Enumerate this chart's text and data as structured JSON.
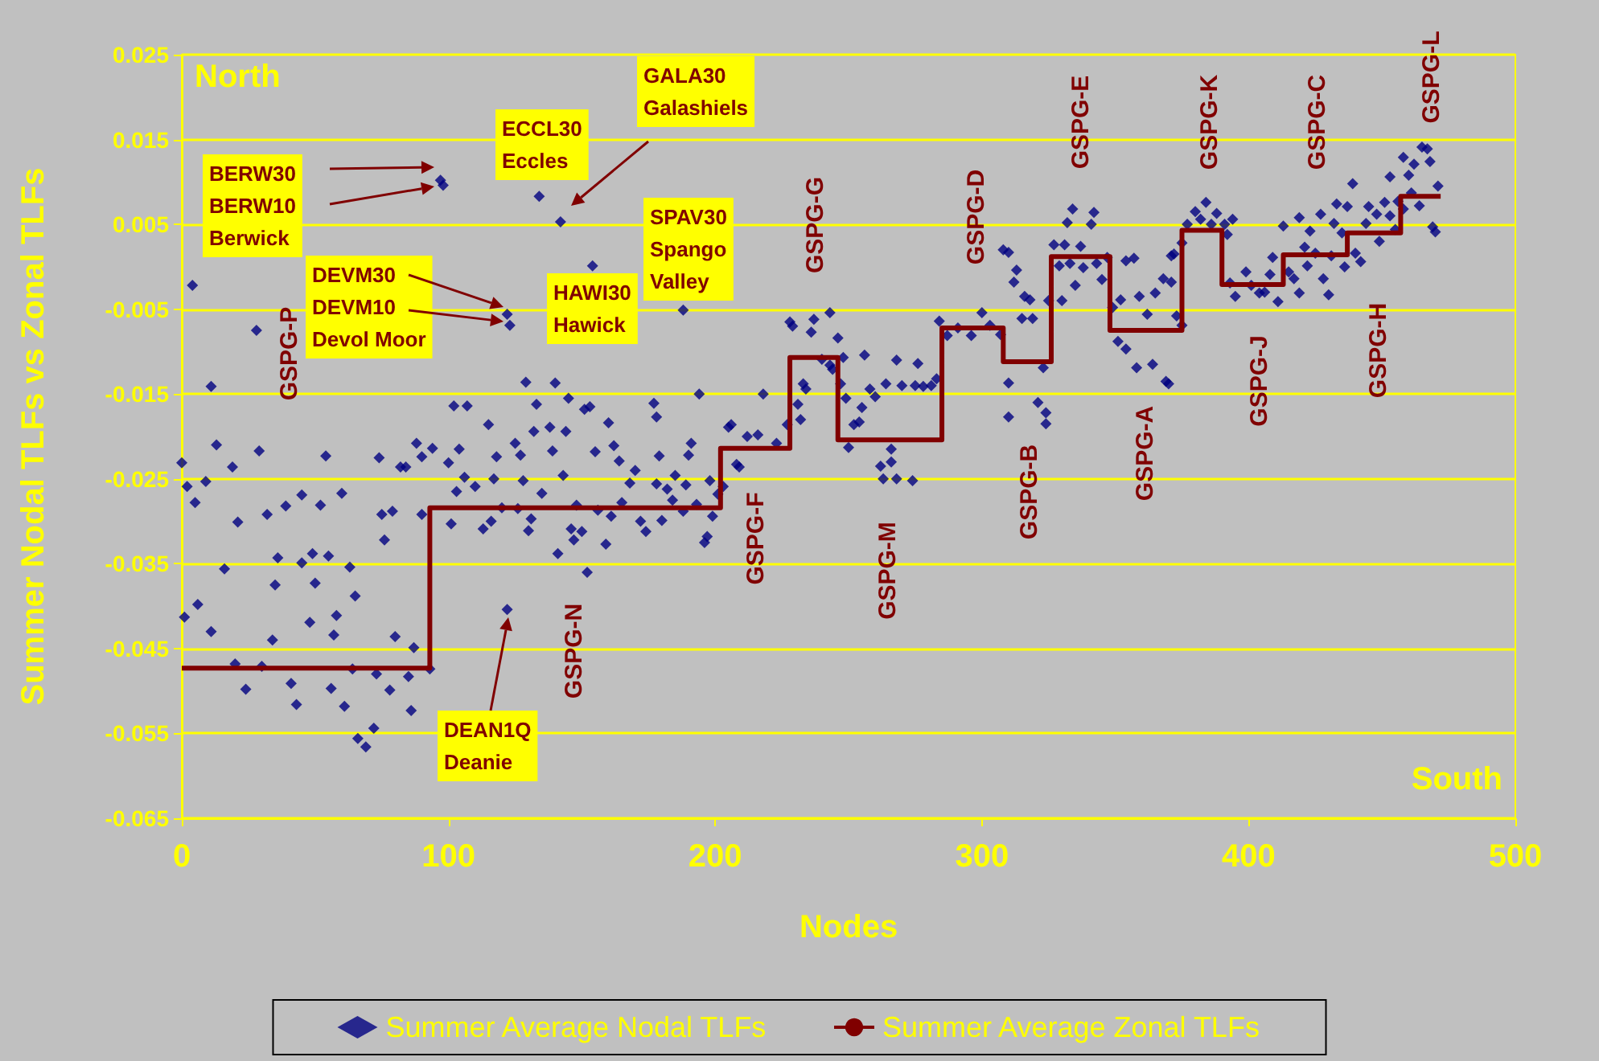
{
  "chart_data": {
    "type": "scatter",
    "xlabel": "Nodes",
    "ylabel": "Summer Nodal TLFs vs Zonal TLFs",
    "xlim": [
      0,
      500
    ],
    "xticks": [
      0,
      100,
      200,
      300,
      400,
      500
    ],
    "ylim": [
      -0.065,
      0.025
    ],
    "yticks": [
      -0.065,
      -0.055,
      -0.045,
      -0.035,
      -0.025,
      -0.015,
      -0.005,
      0.005,
      0.015,
      0.025
    ],
    "grid": "y",
    "legend": "bottom",
    "series": [
      {
        "name": "Summer Average Nodal TLFs",
        "marker": "diamond",
        "color": "#000080",
        "x": [
          4,
          28,
          11,
          0,
          13,
          2,
          9,
          5,
          19,
          29,
          21,
          16,
          1,
          6,
          11,
          20,
          24,
          32,
          36,
          35,
          45,
          39,
          45,
          49,
          50,
          34,
          30,
          41,
          43,
          48,
          54,
          52,
          55,
          57,
          56,
          60,
          63,
          65,
          58,
          61,
          64,
          66,
          69,
          72,
          73,
          75,
          76,
          74,
          79,
          82,
          84,
          80,
          78,
          86,
          85,
          87,
          88,
          90,
          94,
          90,
          93,
          97,
          98,
          102,
          107,
          115,
          104,
          100,
          106,
          103,
          101,
          110,
          113,
          116,
          118,
          120,
          117,
          122,
          122,
          123,
          134,
          142,
          154,
          188,
          129,
          140,
          145,
          151,
          153,
          133,
          132,
          138,
          144,
          127,
          125,
          139,
          155,
          160,
          162,
          164,
          177,
          178,
          194,
          191,
          190,
          179,
          128,
          135,
          143,
          126,
          131,
          130,
          141,
          148,
          146,
          150,
          147,
          152,
          159,
          161,
          156,
          168,
          170,
          165,
          172,
          174,
          178,
          182,
          180,
          185,
          184,
          188,
          189,
          193,
          196,
          197,
          198,
          199,
          201,
          203,
          205,
          206,
          208,
          209,
          212,
          216,
          218,
          223,
          227,
          228,
          229,
          232,
          231,
          233,
          234,
          237,
          236,
          243,
          240,
          244,
          246,
          243,
          248,
          247,
          249,
          252,
          250,
          254,
          255,
          256,
          258,
          260,
          264,
          262,
          263,
          266,
          266,
          268,
          274,
          268,
          270,
          276,
          275,
          278,
          281,
          283,
          284,
          287,
          291,
          296,
          300,
          303,
          307,
          308,
          310,
          313,
          312,
          316,
          318,
          315,
          319,
          310,
          310,
          321,
          324,
          324,
          323,
          325,
          330,
          327,
          331,
          332,
          334,
          329,
          333,
          335,
          338,
          337,
          341,
          342,
          343,
          345,
          347,
          349,
          351,
          354,
          358,
          364,
          352,
          359,
          362,
          354,
          357,
          365,
          368,
          370,
          371,
          371,
          369,
          372,
          373,
          375,
          375,
          377,
          380,
          384,
          382,
          386,
          388,
          391,
          394,
          392,
          395,
          393,
          399,
          401,
          404,
          406,
          409,
          411,
          408,
          413,
          415,
          417,
          419,
          419,
          421,
          422,
          423,
          425,
          427,
          428,
          430,
          431,
          433,
          432,
          435,
          436,
          437,
          439,
          440,
          442,
          444,
          445,
          448,
          449,
          451,
          453,
          453,
          455,
          456,
          458,
          458,
          460,
          462,
          464,
          465,
          467,
          468,
          471,
          469,
          470,
          461
        ],
        "values": [
          -0.0022,
          -0.0075,
          -0.0141,
          -0.0231,
          -0.021,
          -0.0259,
          -0.0253,
          -0.0278,
          -0.0236,
          -0.0217,
          -0.0301,
          -0.0356,
          -0.0413,
          -0.0398,
          -0.043,
          -0.0468,
          -0.0498,
          -0.0292,
          -0.0343,
          -0.0375,
          -0.0269,
          -0.0282,
          -0.0349,
          -0.0338,
          -0.0373,
          -0.044,
          -0.0471,
          -0.0491,
          -0.0516,
          -0.0419,
          -0.0223,
          -0.0281,
          -0.0341,
          -0.0434,
          -0.0497,
          -0.0267,
          -0.0354,
          -0.0388,
          -0.0411,
          -0.0518,
          -0.0474,
          -0.0556,
          -0.0566,
          -0.0544,
          -0.048,
          -0.0292,
          -0.0322,
          -0.0225,
          -0.0288,
          -0.0236,
          -0.0236,
          -0.0436,
          -0.0499,
          -0.0523,
          -0.0483,
          -0.0449,
          -0.0208,
          -0.0224,
          -0.0214,
          -0.0292,
          -0.0474,
          0.0102,
          0.0096,
          -0.0164,
          -0.0164,
          -0.0186,
          -0.0215,
          -0.0231,
          -0.0248,
          -0.0265,
          -0.0303,
          -0.0259,
          -0.0309,
          -0.03,
          -0.0224,
          -0.0284,
          -0.025,
          -0.0404,
          -0.0056,
          -0.0069,
          0.0083,
          0.0053,
          0.0001,
          -0.0051,
          -0.0136,
          -0.0137,
          -0.0155,
          -0.0168,
          -0.0165,
          -0.0162,
          -0.0194,
          -0.0189,
          -0.0194,
          -0.0222,
          -0.0208,
          -0.0217,
          -0.0218,
          -0.0184,
          -0.0211,
          -0.0229,
          -0.0161,
          -0.0177,
          -0.015,
          -0.0208,
          -0.0222,
          -0.0223,
          -0.0252,
          -0.0267,
          -0.0246,
          -0.0285,
          -0.0297,
          -0.0311,
          -0.0338,
          -0.0281,
          -0.0309,
          -0.0312,
          -0.0322,
          -0.036,
          -0.0327,
          -0.0294,
          -0.0287,
          -0.0255,
          -0.024,
          -0.0278,
          -0.03,
          -0.0312,
          -0.0256,
          -0.0262,
          -0.0299,
          -0.0246,
          -0.0275,
          -0.0288,
          -0.0257,
          -0.028,
          -0.0325,
          -0.0318,
          -0.0252,
          -0.0294,
          -0.0268,
          -0.0259,
          -0.0189,
          -0.0186,
          -0.0233,
          -0.0236,
          -0.02,
          -0.0198,
          -0.015,
          -0.0208,
          -0.0186,
          -0.0065,
          -0.007,
          -0.018,
          -0.0162,
          -0.0138,
          -0.0144,
          -0.0062,
          -0.0077,
          -0.0054,
          -0.0109,
          -0.0121,
          -0.0084,
          -0.0116,
          -0.0107,
          -0.0138,
          -0.0155,
          -0.0186,
          -0.0213,
          -0.0183,
          -0.0166,
          -0.0104,
          -0.0144,
          -0.0153,
          -0.0138,
          -0.0235,
          -0.025,
          -0.0215,
          -0.023,
          -0.025,
          -0.0252,
          -0.011,
          -0.014,
          -0.0114,
          -0.014,
          -0.0141,
          -0.014,
          -0.0132,
          -0.0064,
          -0.0081,
          -0.0072,
          -0.0081,
          -0.0054,
          -0.0069,
          -0.008,
          0.002,
          0.0017,
          -0.0004,
          -0.0018,
          -0.0035,
          -0.0039,
          -0.0061,
          -0.0061,
          -0.0137,
          -0.0177,
          -0.016,
          -0.0172,
          -0.0185,
          -0.0119,
          -0.004,
          -0.004,
          0.0026,
          0.0026,
          0.0052,
          0.0068,
          0.0001,
          0.0004,
          -0.0022,
          -0.0001,
          0.0024,
          0.005,
          0.0064,
          0.0004,
          -0.0015,
          0.0011,
          -0.0048,
          -0.0088,
          -0.0097,
          -0.0119,
          -0.0115,
          -0.0039,
          -0.0035,
          -0.0056,
          0.0007,
          0.001,
          -0.0031,
          -0.0014,
          -0.0138,
          0.0013,
          -0.0018,
          -0.0135,
          0.0015,
          -0.0058,
          -0.0069,
          0.0028,
          0.005,
          0.0065,
          0.0076,
          0.0056,
          0.005,
          0.0063,
          0.005,
          0.0056,
          0.0038,
          -0.0035,
          -0.0019,
          -0.0006,
          -0.0022,
          -0.0031,
          -0.003,
          0.0011,
          -0.0041,
          -0.0009,
          0.0048,
          -0.0006,
          -0.0014,
          0.0058,
          -0.0031,
          0.0023,
          0.0001,
          0.0042,
          0.0016,
          0.0062,
          -0.0014,
          -0.0033,
          0.0013,
          0.0074,
          0.0051,
          0.004,
          0,
          0.0071,
          0.0098,
          0.0016,
          0.0006,
          0.0051,
          0.0071,
          0.0062,
          0.003,
          0.0076,
          0.0106,
          0.006,
          0.0044,
          0.0077,
          0.0068,
          0.0129,
          0.0108,
          0.0121,
          0.0072,
          0.0141,
          0.0139,
          0.0124,
          0.0095,
          0.0047,
          0.0041,
          0.0087
        ]
      },
      {
        "name": "Summer Average Zonal TLFs",
        "type": "line",
        "marker": "none",
        "line_style": "solid",
        "color": "#800000",
        "x": [
          0,
          93,
          93,
          202,
          202,
          228,
          228,
          246,
          246,
          285,
          285,
          308,
          308,
          326,
          326,
          348,
          348,
          375,
          375,
          390,
          390,
          413,
          413,
          437,
          437,
          457,
          457,
          472
        ],
        "values": [
          -0.0473,
          -0.0473,
          -0.0284,
          -0.0284,
          -0.0214,
          -0.0214,
          -0.0107,
          -0.0107,
          -0.0204,
          -0.0204,
          -0.0072,
          -0.0072,
          -0.0112,
          -0.0112,
          0.0012,
          0.0012,
          -0.0075,
          -0.0075,
          0.0043,
          0.0043,
          -0.0021,
          -0.0021,
          0.0014,
          0.0014,
          0.004,
          0.004,
          0.0083,
          0.0083
        ]
      }
    ],
    "annotations": [
      "North",
      "South",
      "BERW30\nBERW10\nBerwick",
      "ECCL30\nEccles",
      "GALA30\nGalashiels",
      "SPAV30\nSpango\nValley",
      "HAWI30\nHawick",
      "DEVM30\nDEVM10\nDevol Moor",
      "DEAN1Q\nDeanie",
      "GSPG-P",
      "GSPG-G",
      "GSPG-N",
      "GSPG-F",
      "GSPG-D",
      "GSPG-M",
      "GSPG-B",
      "GSPG-E",
      "GSPG-A",
      "GSPG-K",
      "GSPG-J",
      "GSPG-C",
      "GSPG-H",
      "GSPG-L"
    ]
  }
}
